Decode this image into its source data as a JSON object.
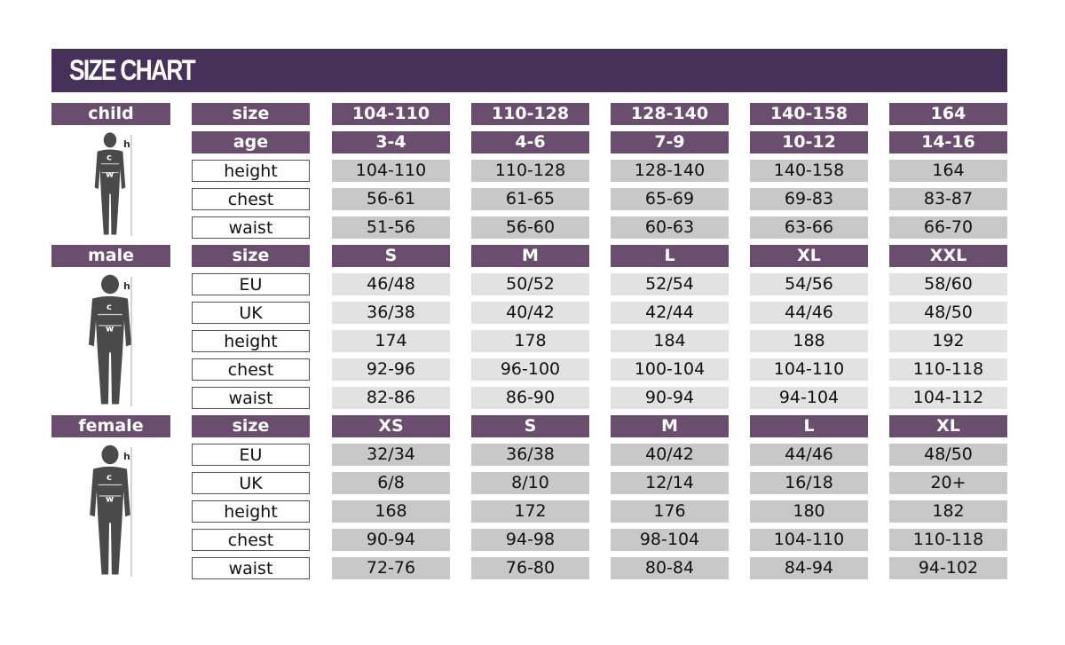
{
  "title": "SIZE CHART",
  "colors": {
    "header": "#45315a",
    "purple": "#6a4e6e",
    "grey_dark": "#c8c8c8",
    "grey_light": "#e2e2e2"
  },
  "figure_labels": {
    "height": "h",
    "chest": "c",
    "waist": "w"
  },
  "sections": [
    {
      "label": "child",
      "shade": "g1",
      "headers": [
        {
          "label": "size",
          "values": [
            "104-110",
            "110-128",
            "128-140",
            "140-158",
            "164"
          ]
        },
        {
          "label": "age",
          "values": [
            "3-4",
            "4-6",
            "7-9",
            "10-12",
            "14-16"
          ]
        }
      ],
      "rows": [
        {
          "label": "height",
          "values": [
            "104-110",
            "110-128",
            "128-140",
            "140-158",
            "164"
          ]
        },
        {
          "label": "chest",
          "values": [
            "56-61",
            "61-65",
            "65-69",
            "69-83",
            "83-87"
          ]
        },
        {
          "label": "waist",
          "values": [
            "51-56",
            "56-60",
            "60-63",
            "63-66",
            "66-70"
          ]
        }
      ]
    },
    {
      "label": "male",
      "shade": "g2",
      "headers": [
        {
          "label": "size",
          "values": [
            "S",
            "M",
            "L",
            "XL",
            "XXL"
          ]
        }
      ],
      "rows": [
        {
          "label": "EU",
          "values": [
            "46/48",
            "50/52",
            "52/54",
            "54/56",
            "58/60"
          ]
        },
        {
          "label": "UK",
          "values": [
            "36/38",
            "40/42",
            "42/44",
            "44/46",
            "48/50"
          ]
        },
        {
          "label": "height",
          "values": [
            "174",
            "178",
            "184",
            "188",
            "192"
          ]
        },
        {
          "label": "chest",
          "values": [
            "92-96",
            "96-100",
            "100-104",
            "104-110",
            "110-118"
          ]
        },
        {
          "label": "waist",
          "values": [
            "82-86",
            "86-90",
            "90-94",
            "94-104",
            "104-112"
          ]
        }
      ]
    },
    {
      "label": "female",
      "shade": "g1",
      "headers": [
        {
          "label": "size",
          "values": [
            "XS",
            "S",
            "M",
            "L",
            "XL"
          ]
        }
      ],
      "rows": [
        {
          "label": "EU",
          "values": [
            "32/34",
            "36/38",
            "40/42",
            "44/46",
            "48/50"
          ]
        },
        {
          "label": "UK",
          "values": [
            "6/8",
            "8/10",
            "12/14",
            "16/18",
            "20+"
          ]
        },
        {
          "label": "height",
          "values": [
            "168",
            "172",
            "176",
            "180",
            "182"
          ]
        },
        {
          "label": "chest",
          "values": [
            "90-94",
            "94-98",
            "98-104",
            "104-110",
            "110-118"
          ]
        },
        {
          "label": "waist",
          "values": [
            "72-76",
            "76-80",
            "80-84",
            "84-94",
            "94-102"
          ]
        }
      ]
    }
  ]
}
